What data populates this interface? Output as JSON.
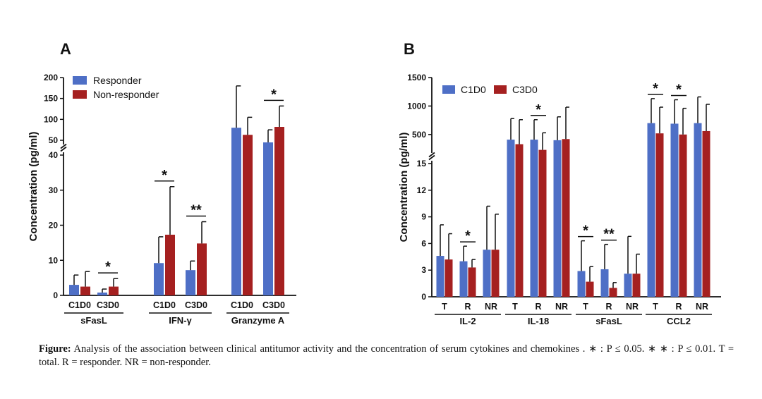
{
  "colors": {
    "series1": "#4e6fc6",
    "series2": "#a52020",
    "axis": "#111111"
  },
  "chart_data": [
    {
      "type": "bar",
      "panel_label": "A",
      "ylabel": "Concentration (pg/ml)",
      "y_lower_range": [
        0,
        40
      ],
      "y_upper_range": [
        50,
        200
      ],
      "y_lower_ticks": [
        "0",
        "10",
        "20",
        "30",
        "40"
      ],
      "y_upper_ticks": [
        "50",
        "100",
        "150",
        "200"
      ],
      "legend": [
        "Responder",
        "Non-responder"
      ],
      "groups": [
        {
          "name": "sFasL",
          "timepoints": [
            {
              "label": "C1D0",
              "values": [
                3.0,
                2.5
              ],
              "errors": [
                2.8,
                4.3
              ]
            },
            {
              "label": "C3D0",
              "values": [
                0.8,
                2.5
              ],
              "errors": [
                1.0,
                2.3
              ]
            }
          ],
          "sig": [
            {
              "timepoint": 1,
              "text": "*"
            }
          ]
        },
        {
          "name": "IFN-γ",
          "timepoints": [
            {
              "label": "C1D0",
              "values": [
                9.2,
                17.3
              ],
              "errors": [
                7.5,
                13.7
              ]
            },
            {
              "label": "C3D0",
              "values": [
                7.2,
                14.8
              ],
              "errors": [
                2.6,
                6.2
              ]
            }
          ],
          "sig": [
            {
              "timepoint": 0,
              "text": "*"
            },
            {
              "timepoint": 1,
              "text": "**"
            }
          ]
        },
        {
          "name": "Granzyme A",
          "timepoints": [
            {
              "label": "C1D0",
              "values": [
                80,
                63
              ],
              "errors": [
                100,
                42
              ]
            },
            {
              "label": "C3D0",
              "values": [
                45,
                82
              ],
              "errors": [
                30,
                50
              ]
            }
          ],
          "sig": [
            {
              "timepoint": 1,
              "text": "*"
            }
          ]
        }
      ]
    },
    {
      "type": "bar",
      "panel_label": "B",
      "ylabel": "Concentration (pg/ml)",
      "y_lower_range": [
        0,
        15
      ],
      "y_upper_range": [
        250,
        1500
      ],
      "y_lower_ticks": [
        "0",
        "3",
        "6",
        "9",
        "12",
        "15"
      ],
      "y_upper_ticks": [
        "500",
        "1000",
        "1500"
      ],
      "legend": [
        "C1D0",
        "C3D0"
      ],
      "groups": [
        {
          "name": "IL-2",
          "subgroups": [
            {
              "label": "T",
              "values": [
                4.6,
                4.2
              ],
              "errors": [
                3.5,
                2.9
              ]
            },
            {
              "label": "R",
              "values": [
                4.0,
                3.3
              ],
              "errors": [
                1.7,
                0.9
              ]
            },
            {
              "label": "NR",
              "values": [
                5.3,
                5.3
              ],
              "errors": [
                4.9,
                4.0
              ]
            }
          ],
          "sig": [
            {
              "subgroup": 1,
              "text": "*"
            }
          ]
        },
        {
          "name": "IL-18",
          "subgroups": [
            {
              "label": "T",
              "values": [
                410,
                330
              ],
              "errors": [
                370,
                430
              ]
            },
            {
              "label": "R",
              "values": [
                410,
                230
              ],
              "errors": [
                350,
                300
              ]
            },
            {
              "label": "NR",
              "values": [
                400,
                420
              ],
              "errors": [
                410,
                560
              ]
            }
          ],
          "sig": [
            {
              "subgroup": 1,
              "text": "*"
            }
          ]
        },
        {
          "name": "sFasL",
          "subgroups": [
            {
              "label": "T",
              "values": [
                2.9,
                1.7
              ],
              "errors": [
                3.4,
                1.7
              ]
            },
            {
              "label": "R",
              "values": [
                3.1,
                1.0
              ],
              "errors": [
                2.8,
                0.6
              ]
            },
            {
              "label": "NR",
              "values": [
                2.6,
                2.6
              ],
              "errors": [
                4.2,
                2.2
              ]
            }
          ],
          "sig": [
            {
              "subgroup": 0,
              "text": "*"
            },
            {
              "subgroup": 1,
              "text": "**"
            }
          ]
        },
        {
          "name": "CCL2",
          "subgroups": [
            {
              "label": "T",
              "values": [
                700,
                520
              ],
              "errors": [
                430,
                460
              ]
            },
            {
              "label": "R",
              "values": [
                690,
                500
              ],
              "errors": [
                420,
                460
              ]
            },
            {
              "label": "NR",
              "values": [
                700,
                560
              ],
              "errors": [
                460,
                470
              ]
            }
          ],
          "sig": [
            {
              "subgroup": 0,
              "text": "*"
            },
            {
              "subgroup": 1,
              "text": "*"
            }
          ]
        }
      ]
    }
  ],
  "caption": {
    "label": "Figure:",
    "text": "Analysis of the association between clinical antitumor activity and the concentration of serum cytokines and chemokines .   ∗ : P ≤ 0.05.  ∗ ∗ : P ≤ 0.01. T = total. R = responder. NR = non-responder."
  }
}
